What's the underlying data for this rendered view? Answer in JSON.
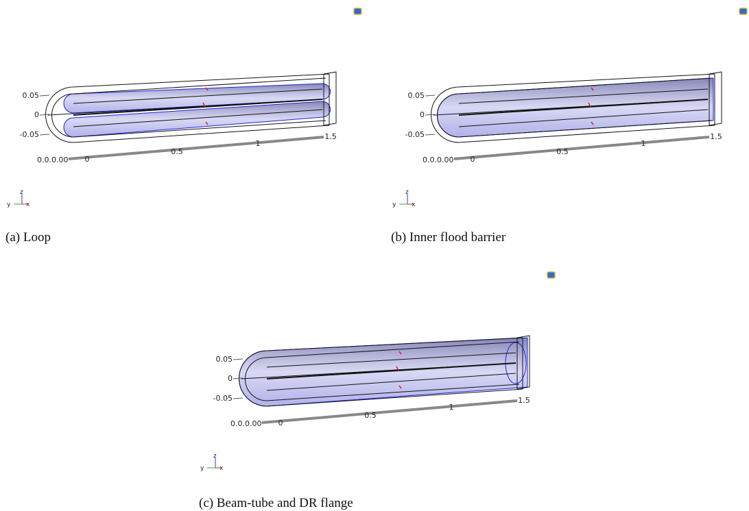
{
  "panels": [
    {
      "caption": "(a) Loop",
      "y_ticks": [
        "0.05",
        "0",
        "-0.05"
      ],
      "x_ticks": [
        "0.0.0.00",
        "0",
        "0.5",
        "1",
        "1.5"
      ],
      "triad": {
        "z": "z",
        "y": "y",
        "x": "x"
      }
    },
    {
      "caption": "(b) Inner flood barrier",
      "y_ticks": [
        "0.05",
        "0",
        "-0.05"
      ],
      "x_ticks": [
        "0.0.0.00",
        "0",
        "0.5",
        "1",
        "1.5"
      ],
      "triad": {
        "z": "z",
        "y": "y",
        "x": "x"
      }
    },
    {
      "caption": "(c) Beam-tube and DR flange",
      "y_ticks": [
        "0.05",
        "0",
        "-0.05"
      ],
      "x_ticks": [
        "0.0.0.00",
        "0",
        "0.5",
        "1",
        "1.5"
      ],
      "triad": {
        "z": "z",
        "y": "y",
        "x": "x"
      }
    }
  ]
}
